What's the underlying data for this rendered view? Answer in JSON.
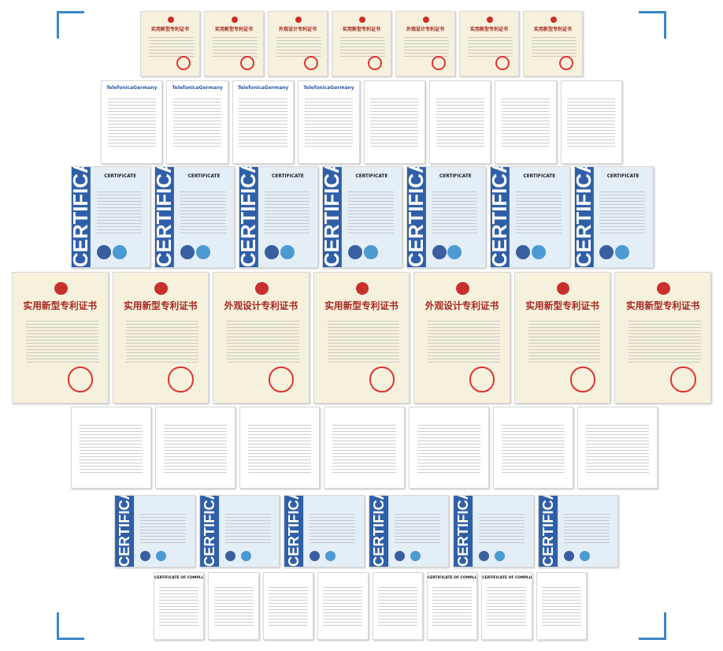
{
  "rows": [
    {
      "certificates": [
        {
          "kind": "patent",
          "title": "实用新型专利证书"
        },
        {
          "kind": "patent",
          "title": "实用新型专利证书"
        },
        {
          "kind": "patent",
          "title": "外观设计专利证书"
        },
        {
          "kind": "patent",
          "title": "实用新型专利证书"
        },
        {
          "kind": "patent",
          "title": "外观设计专利证书"
        },
        {
          "kind": "patent",
          "title": "实用新型专利证书"
        },
        {
          "kind": "patent",
          "title": "实用新型专利证书"
        }
      ]
    },
    {
      "certificates": [
        {
          "kind": "telekom",
          "title": "TelefonicaGermany"
        },
        {
          "kind": "telekom",
          "title": "TelefonicaGermany"
        },
        {
          "kind": "telekom",
          "title": "TelefonicaGermany"
        },
        {
          "kind": "telekom",
          "title": "TelefonicaGermany"
        },
        {
          "kind": "doc"
        },
        {
          "kind": "doc"
        },
        {
          "kind": "doc"
        },
        {
          "kind": "doc"
        }
      ]
    },
    {
      "certificates": [
        {
          "kind": "ce",
          "band": "CERTIFICATE",
          "title": "CERTIFICATE"
        },
        {
          "kind": "ce",
          "band": "CERTIFICATE",
          "title": "CERTIFICATE"
        },
        {
          "kind": "ce",
          "band": "CERTIFICATE",
          "title": "CERTIFICATE"
        },
        {
          "kind": "ce",
          "band": "CERTIFICATE",
          "title": "CERTIFICATE"
        },
        {
          "kind": "ce",
          "band": "CERTIFICATE",
          "title": "CERTIFICATE"
        },
        {
          "kind": "ce",
          "band": "CERTIFICATE",
          "title": "CERTIFICATE"
        },
        {
          "kind": "ce",
          "band": "CERTIFICATE",
          "title": "CERTIFICATE"
        }
      ]
    },
    {
      "certificates": [
        {
          "kind": "patent",
          "title": "实用新型专利证书"
        },
        {
          "kind": "patent",
          "title": "实用新型专利证书"
        },
        {
          "kind": "patent",
          "title": "外观设计专利证书"
        },
        {
          "kind": "patent",
          "title": "实用新型专利证书"
        },
        {
          "kind": "patent",
          "title": "外观设计专利证书"
        },
        {
          "kind": "patent",
          "title": "实用新型专利证书"
        },
        {
          "kind": "patent",
          "title": "实用新型专利证书"
        }
      ]
    },
    {
      "certificates": [
        {
          "kind": "doc"
        },
        {
          "kind": "doc"
        },
        {
          "kind": "doc"
        },
        {
          "kind": "doc"
        },
        {
          "kind": "doc"
        },
        {
          "kind": "doc"
        },
        {
          "kind": "doc"
        }
      ]
    },
    {
      "certificates": [
        {
          "kind": "ce",
          "band": "CERTIFICA"
        },
        {
          "kind": "ce",
          "band": "CERTIFICA"
        },
        {
          "kind": "ce",
          "band": "CERTIFICA"
        },
        {
          "kind": "ce",
          "band": "CERTIFICA"
        },
        {
          "kind": "ce",
          "band": "CERTIFICA"
        },
        {
          "kind": "ce",
          "band": "CERTIFICA"
        }
      ]
    },
    {
      "certificates": [
        {
          "kind": "coc",
          "title": "CERTIFICATE OF COMPLIANCE"
        },
        {
          "kind": "doc"
        },
        {
          "kind": "doc"
        },
        {
          "kind": "doc"
        },
        {
          "kind": "doc"
        },
        {
          "kind": "coc",
          "title": "CERTIFICATE OF COMPLIANCE"
        },
        {
          "kind": "coc",
          "title": "CERTIFICATE OF COMPLIANCE"
        },
        {
          "kind": "doc"
        }
      ]
    }
  ]
}
